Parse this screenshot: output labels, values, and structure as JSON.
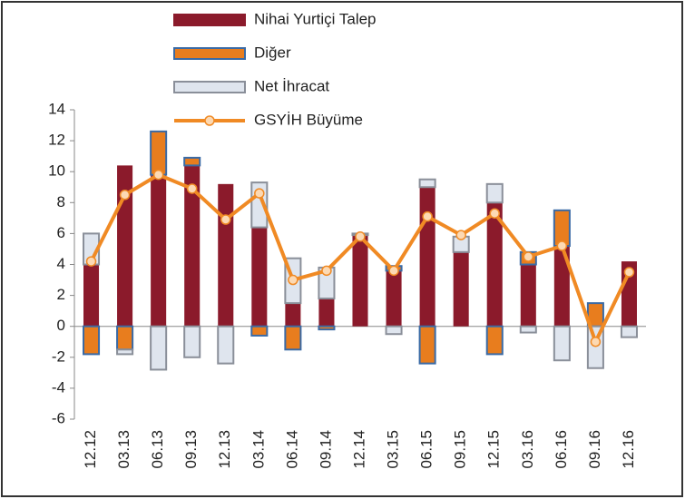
{
  "chart_data": {
    "type": "stacked_bar_line",
    "categories": [
      "12.12",
      "03.13",
      "06.13",
      "09.13",
      "12.13",
      "03.14",
      "06.14",
      "09.14",
      "12.14",
      "03.15",
      "06.15",
      "09.15",
      "12.15",
      "03.16",
      "06.16",
      "09.16",
      "12.16"
    ],
    "series": [
      {
        "name": "Nihai Yurtiçi Talep",
        "kind": "bar",
        "color": "#8b1a2b",
        "values": [
          4.0,
          10.4,
          9.8,
          10.4,
          9.2,
          6.4,
          1.5,
          1.8,
          5.9,
          3.6,
          9.0,
          4.8,
          8.0,
          4.0,
          5.2,
          0,
          4.2
        ]
      },
      {
        "name": "Diğer",
        "kind": "bar",
        "color": "#e87d1e",
        "values": [
          -1.8,
          -1.5,
          2.8,
          0.5,
          0,
          -0.6,
          -1.5,
          -0.2,
          0,
          0.3,
          -2.4,
          0,
          -1.8,
          0.8,
          2.3,
          1.5,
          0
        ]
      },
      {
        "name": "Net İhracat",
        "kind": "bar",
        "color": "#dfe5ee",
        "values": [
          2.0,
          -0.3,
          -2.8,
          -2.0,
          -2.4,
          2.9,
          2.9,
          2.0,
          0.1,
          -0.5,
          0.5,
          1.0,
          1.2,
          -0.4,
          -2.2,
          -2.7,
          -0.7
        ]
      },
      {
        "name": "GSYİH Büyüme",
        "kind": "line",
        "color": "#f08a24",
        "values": [
          4.2,
          8.5,
          9.8,
          8.9,
          6.9,
          8.6,
          3.0,
          3.6,
          5.8,
          3.6,
          7.1,
          5.9,
          7.3,
          4.5,
          5.2,
          -1.0,
          3.5
        ]
      }
    ],
    "ylim": [
      -6,
      14
    ],
    "yticks": [
      -6,
      -4,
      -2,
      0,
      2,
      4,
      6,
      8,
      10,
      12,
      14
    ]
  }
}
